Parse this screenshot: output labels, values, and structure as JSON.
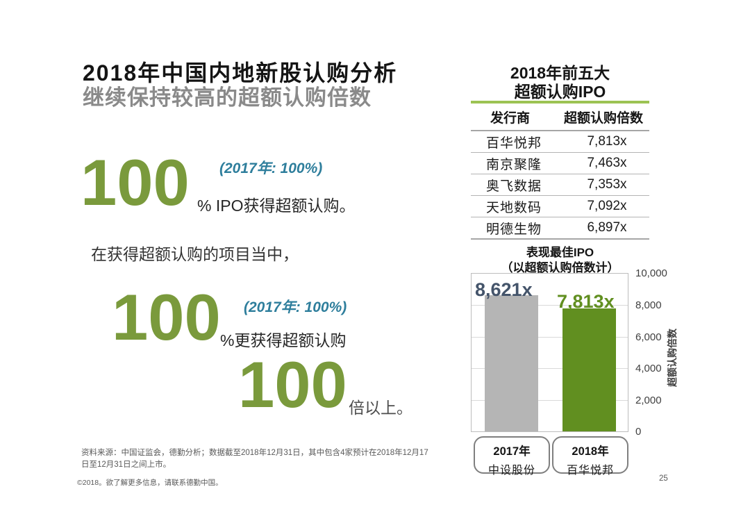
{
  "left": {
    "title": "2018年中国内地新股认购分析",
    "subtitle": "继续保持较高的超额认购倍数",
    "stat1": {
      "value": "100",
      "note": "(2017年: 100%)",
      "desc": "% IPO获得超额认购。"
    },
    "lead_in": "在获得超额认购的项目当中，",
    "stat2": {
      "value": "100",
      "note": "(2017年: 100%)",
      "desc": "%更获得超额认购"
    },
    "stat3": {
      "value": "100",
      "desc": "倍以上。"
    },
    "source_note": "资料来源：中国证监会，德勤分析；数据截至2018年12月31日，其中包含4家预计在2018年12月17日至12月31日之间上市。",
    "copyright_note": "©2018。欲了解更多信息，请联系德勤中国。"
  },
  "right": {
    "panel_title_line1": "2018年前五大",
    "panel_title_line2": "超额认购IPO",
    "table": {
      "headers": [
        "发行商",
        "超额认购倍数"
      ],
      "rows": [
        {
          "issuer": "百华悦邦",
          "multiple": "7,813x"
        },
        {
          "issuer": "南京聚隆",
          "multiple": "7,463x"
        },
        {
          "issuer": "奥飞数据",
          "multiple": "7,353x"
        },
        {
          "issuer": "天地数码",
          "multiple": "7,092x"
        },
        {
          "issuer": "明德生物",
          "multiple": "6,897x"
        }
      ]
    },
    "chart_title_line1": "表现最佳IPO",
    "chart_title_line2": "（以超额认购倍数计）"
  },
  "page_number": "25",
  "colors": {
    "accent_green": "#7A9A3C",
    "bar_green": "#618F20",
    "bar_gray": "#B5B5B5",
    "teal_note": "#2E7E9C",
    "label_slate": "#44546A",
    "rule_green": "#9CC353"
  },
  "chart_data": {
    "type": "bar",
    "title": "表现最佳IPO（以超额认购倍数计）",
    "ylabel": "超额认购倍数",
    "ylim": [
      0,
      10000
    ],
    "yticks": [
      "10,000",
      "8,000",
      "6,000",
      "4,000",
      "2,000",
      "0"
    ],
    "categories": [
      [
        "2017年",
        "中设股份"
      ],
      [
        "2018年",
        "百华悦邦"
      ]
    ],
    "values": [
      8621,
      7813
    ],
    "data_labels": [
      "8,621x",
      "7,813x"
    ],
    "bar_colors": [
      "#B5B5B5",
      "#618F20"
    ],
    "data_label_colors": [
      "#44546A",
      "#618F20"
    ],
    "grid": true,
    "legend": "none"
  }
}
